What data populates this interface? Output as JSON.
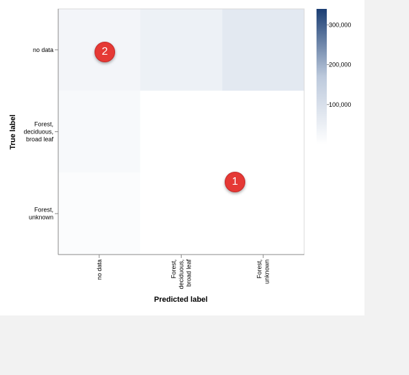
{
  "chart_data": {
    "type": "heatmap",
    "title": "",
    "xlabel": "Predicted label",
    "ylabel": "True label",
    "x_categories": [
      [
        "no data"
      ],
      [
        "Forest,",
        "deciduous,",
        "broad leaf"
      ],
      [
        "Forest,",
        "unknown"
      ]
    ],
    "y_categories": [
      [
        "no data"
      ],
      [
        "Forest,",
        "deciduous,",
        "broad leaf"
      ],
      [
        "Forest,",
        "unknown"
      ]
    ],
    "values": [
      [
        30000,
        45000,
        70000
      ],
      [
        20000,
        0,
        0
      ],
      [
        10000,
        0,
        0
      ]
    ],
    "color_scale": {
      "min": 0,
      "max": 340000,
      "low_color": "#ffffff",
      "mid_color": "#bcc9dc",
      "high_color": "#1b3e73",
      "ticks": [
        100000,
        200000,
        300000
      ],
      "tick_labels": [
        "100,000",
        "200,000",
        "300,000"
      ]
    },
    "legend_position": "right"
  },
  "markers": [
    {
      "label": "1"
    },
    {
      "label": "2"
    }
  ]
}
